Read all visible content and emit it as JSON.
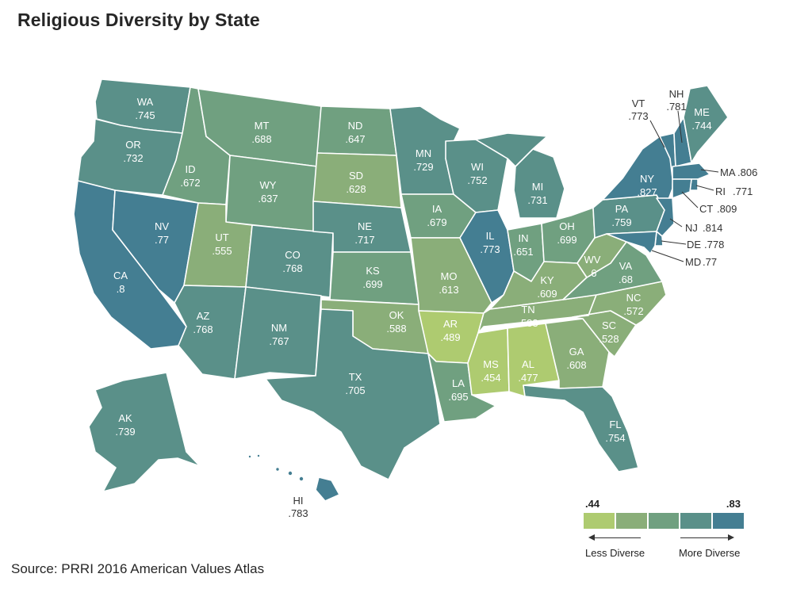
{
  "title": "Religious Diversity by State",
  "source": "Source: PRRI 2016 American Values Atlas",
  "legend": {
    "min": ".44",
    "max": ".83",
    "less": "Less Diverse",
    "more": "More Diverse",
    "colors": [
      "#aecb70",
      "#8aae79",
      "#70a080",
      "#5a9089",
      "#447e92"
    ]
  },
  "states": [
    {
      "abbr": "WA",
      "value": ".745"
    },
    {
      "abbr": "OR",
      "value": ".732"
    },
    {
      "abbr": "CA",
      "value": ".8"
    },
    {
      "abbr": "NV",
      "value": ".77"
    },
    {
      "abbr": "ID",
      "value": ".672"
    },
    {
      "abbr": "MT",
      "value": ".688"
    },
    {
      "abbr": "WY",
      "value": ".637"
    },
    {
      "abbr": "UT",
      "value": ".555"
    },
    {
      "abbr": "AZ",
      "value": ".768"
    },
    {
      "abbr": "CO",
      "value": ".768"
    },
    {
      "abbr": "NM",
      "value": ".767"
    },
    {
      "abbr": "ND",
      "value": ".647"
    },
    {
      "abbr": "SD",
      "value": ".628"
    },
    {
      "abbr": "NE",
      "value": ".717"
    },
    {
      "abbr": "KS",
      "value": ".699"
    },
    {
      "abbr": "OK",
      "value": ".588"
    },
    {
      "abbr": "TX",
      "value": ".705"
    },
    {
      "abbr": "MN",
      "value": ".729"
    },
    {
      "abbr": "IA",
      "value": ".679"
    },
    {
      "abbr": "MO",
      "value": ".613"
    },
    {
      "abbr": "AR",
      "value": ".489"
    },
    {
      "abbr": "LA",
      "value": ".695"
    },
    {
      "abbr": "WI",
      "value": ".752"
    },
    {
      "abbr": "IL",
      "value": ".773"
    },
    {
      "abbr": "MI",
      "value": ".731"
    },
    {
      "abbr": "IN",
      "value": ".651"
    },
    {
      "abbr": "OH",
      "value": ".699"
    },
    {
      "abbr": "KY",
      "value": ".609"
    },
    {
      "abbr": "TN",
      "value": ".533"
    },
    {
      "abbr": "MS",
      "value": ".454"
    },
    {
      "abbr": "AL",
      "value": ".477"
    },
    {
      "abbr": "GA",
      "value": ".608"
    },
    {
      "abbr": "FL",
      "value": ".754"
    },
    {
      "abbr": "SC",
      "value": ".528"
    },
    {
      "abbr": "NC",
      "value": ".572"
    },
    {
      "abbr": "VA",
      "value": ".68"
    },
    {
      "abbr": "WV",
      "value": ".6"
    },
    {
      "abbr": "PA",
      "value": ".759"
    },
    {
      "abbr": "NY",
      "value": ".827"
    },
    {
      "abbr": "VT",
      "value": ".773"
    },
    {
      "abbr": "NH",
      "value": ".781"
    },
    {
      "abbr": "ME",
      "value": ".744"
    },
    {
      "abbr": "MA",
      "value": ".806"
    },
    {
      "abbr": "RI",
      "value": ".771"
    },
    {
      "abbr": "CT",
      "value": ".809"
    },
    {
      "abbr": "NJ",
      "value": ".814"
    },
    {
      "abbr": "DE",
      "value": ".778"
    },
    {
      "abbr": "MD",
      "value": ".77"
    },
    {
      "abbr": "AK",
      "value": ".739"
    },
    {
      "abbr": "HI",
      "value": ".783"
    }
  ]
}
